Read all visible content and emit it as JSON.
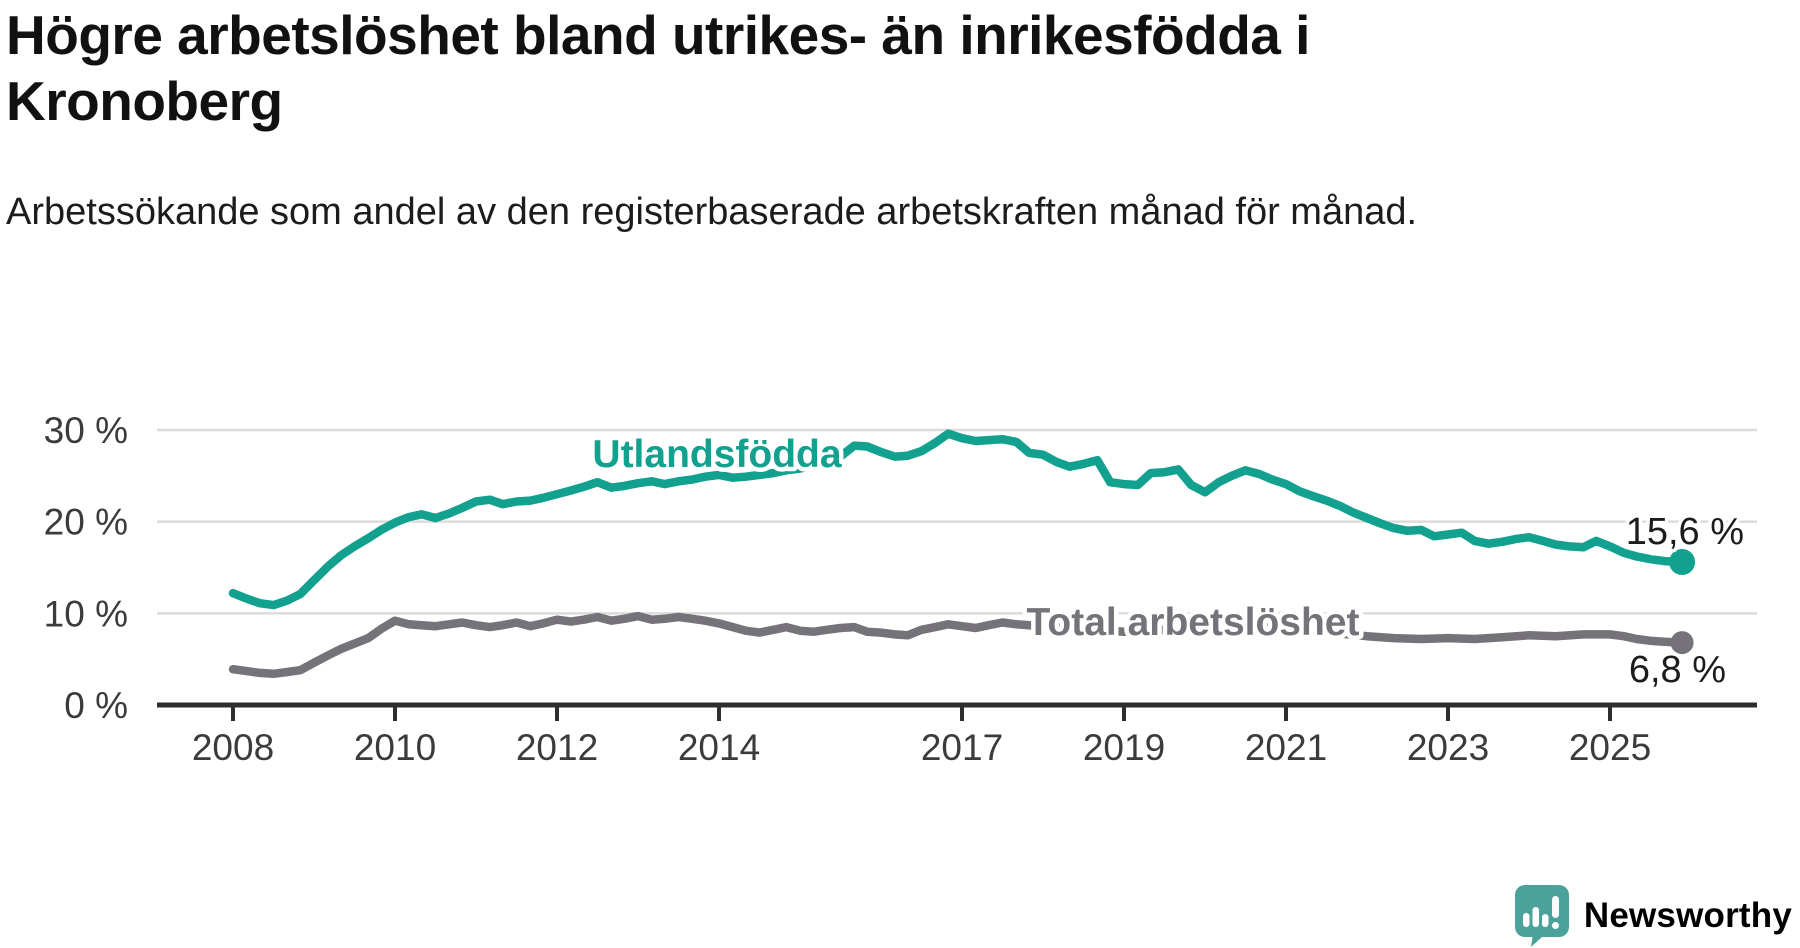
{
  "header": {
    "title": "Högre arbetslöshet bland utrikes- än inrikesfödda i Kronoberg",
    "subtitle": "Arbetssökande som andel av den registerbaserade arbetskraften månad för månad."
  },
  "chart_data": {
    "type": "line",
    "title": "Högre arbetslöshet bland utrikes- än inrikesfödda i Kronoberg",
    "subtitle": "Arbetssökande som andel av den registerbaserade arbetskraften månad för månad.",
    "xlabel": "",
    "ylabel": "",
    "grid": "horizontal",
    "legend_position": "inline-on-lines",
    "x_ticks": [
      2008,
      2010,
      2012,
      2014,
      2017,
      2019,
      2021,
      2023,
      2025
    ],
    "y_ticks": [
      {
        "value": 0,
        "label": "0 %"
      },
      {
        "value": 10,
        "label": "10 %"
      },
      {
        "value": 20,
        "label": "20 %"
      },
      {
        "value": 30,
        "label": "30 %"
      }
    ],
    "xlim": [
      2007.7,
      2026.6
    ],
    "ylim": [
      0,
      32.5
    ],
    "series": [
      {
        "name": "Utlandsfödda",
        "color": "#12a08f",
        "end_label": "15,6 %",
        "end_value": 15.6,
        "points": [
          [
            2008.0,
            12.2
          ],
          [
            2008.17,
            11.6
          ],
          [
            2008.33,
            11.1
          ],
          [
            2008.5,
            10.9
          ],
          [
            2008.67,
            11.4
          ],
          [
            2008.83,
            12.1
          ],
          [
            2009.0,
            13.6
          ],
          [
            2009.17,
            15.1
          ],
          [
            2009.33,
            16.3
          ],
          [
            2009.5,
            17.3
          ],
          [
            2009.67,
            18.2
          ],
          [
            2009.83,
            19.1
          ],
          [
            2010.0,
            19.9
          ],
          [
            2010.17,
            20.5
          ],
          [
            2010.33,
            20.8
          ],
          [
            2010.5,
            20.4
          ],
          [
            2010.67,
            20.9
          ],
          [
            2010.83,
            21.5
          ],
          [
            2011.0,
            22.2
          ],
          [
            2011.17,
            22.4
          ],
          [
            2011.33,
            21.9
          ],
          [
            2011.5,
            22.2
          ],
          [
            2011.67,
            22.3
          ],
          [
            2011.83,
            22.6
          ],
          [
            2012.0,
            23.0
          ],
          [
            2012.17,
            23.4
          ],
          [
            2012.33,
            23.8
          ],
          [
            2012.5,
            24.3
          ],
          [
            2012.67,
            23.7
          ],
          [
            2012.83,
            23.9
          ],
          [
            2013.0,
            24.2
          ],
          [
            2013.17,
            24.4
          ],
          [
            2013.33,
            24.1
          ],
          [
            2013.5,
            24.4
          ],
          [
            2013.67,
            24.6
          ],
          [
            2013.83,
            24.9
          ],
          [
            2014.0,
            25.1
          ],
          [
            2014.17,
            24.8
          ],
          [
            2014.33,
            24.9
          ],
          [
            2014.5,
            25.1
          ],
          [
            2014.67,
            25.3
          ],
          [
            2014.83,
            25.6
          ],
          [
            2015.0,
            25.8
          ],
          [
            2015.17,
            26.1
          ],
          [
            2015.33,
            26.4
          ],
          [
            2015.5,
            27.1
          ],
          [
            2015.67,
            28.3
          ],
          [
            2015.83,
            28.2
          ],
          [
            2016.0,
            27.6
          ],
          [
            2016.17,
            27.1
          ],
          [
            2016.33,
            27.2
          ],
          [
            2016.5,
            27.7
          ],
          [
            2016.67,
            28.6
          ],
          [
            2016.83,
            29.6
          ],
          [
            2017.0,
            29.1
          ],
          [
            2017.17,
            28.8
          ],
          [
            2017.33,
            28.9
          ],
          [
            2017.5,
            29.0
          ],
          [
            2017.67,
            28.7
          ],
          [
            2017.83,
            27.5
          ],
          [
            2018.0,
            27.3
          ],
          [
            2018.17,
            26.5
          ],
          [
            2018.33,
            26.0
          ],
          [
            2018.5,
            26.3
          ],
          [
            2018.67,
            26.7
          ],
          [
            2018.83,
            24.3
          ],
          [
            2019.0,
            24.1
          ],
          [
            2019.17,
            24.0
          ],
          [
            2019.33,
            25.3
          ],
          [
            2019.5,
            25.4
          ],
          [
            2019.67,
            25.7
          ],
          [
            2019.83,
            24.0
          ],
          [
            2020.0,
            23.2
          ],
          [
            2020.17,
            24.3
          ],
          [
            2020.33,
            25.0
          ],
          [
            2020.5,
            25.6
          ],
          [
            2020.67,
            25.2
          ],
          [
            2020.83,
            24.6
          ],
          [
            2021.0,
            24.1
          ],
          [
            2021.17,
            23.3
          ],
          [
            2021.33,
            22.8
          ],
          [
            2021.5,
            22.3
          ],
          [
            2021.67,
            21.7
          ],
          [
            2021.83,
            21.0
          ],
          [
            2022.0,
            20.4
          ],
          [
            2022.17,
            19.8
          ],
          [
            2022.33,
            19.3
          ],
          [
            2022.5,
            19.0
          ],
          [
            2022.67,
            19.1
          ],
          [
            2022.83,
            18.4
          ],
          [
            2023.0,
            18.6
          ],
          [
            2023.17,
            18.8
          ],
          [
            2023.33,
            17.9
          ],
          [
            2023.5,
            17.6
          ],
          [
            2023.67,
            17.8
          ],
          [
            2023.83,
            18.1
          ],
          [
            2024.0,
            18.3
          ],
          [
            2024.17,
            17.9
          ],
          [
            2024.33,
            17.5
          ],
          [
            2024.5,
            17.3
          ],
          [
            2024.67,
            17.2
          ],
          [
            2024.83,
            17.9
          ],
          [
            2025.0,
            17.3
          ],
          [
            2025.17,
            16.6
          ],
          [
            2025.33,
            16.2
          ],
          [
            2025.5,
            15.9
          ],
          [
            2025.67,
            15.7
          ],
          [
            2025.89,
            15.6
          ]
        ]
      },
      {
        "name": "Total arbetslöshet",
        "color": "#757379",
        "end_label": "6,8 %",
        "end_value": 6.8,
        "points": [
          [
            2008.0,
            3.9
          ],
          [
            2008.17,
            3.7
          ],
          [
            2008.33,
            3.5
          ],
          [
            2008.5,
            3.4
          ],
          [
            2008.67,
            3.6
          ],
          [
            2008.83,
            3.8
          ],
          [
            2009.0,
            4.6
          ],
          [
            2009.17,
            5.4
          ],
          [
            2009.33,
            6.1
          ],
          [
            2009.5,
            6.7
          ],
          [
            2009.67,
            7.3
          ],
          [
            2009.83,
            8.3
          ],
          [
            2010.0,
            9.2
          ],
          [
            2010.17,
            8.8
          ],
          [
            2010.33,
            8.7
          ],
          [
            2010.5,
            8.6
          ],
          [
            2010.67,
            8.8
          ],
          [
            2010.83,
            9.0
          ],
          [
            2011.0,
            8.7
          ],
          [
            2011.17,
            8.5
          ],
          [
            2011.33,
            8.7
          ],
          [
            2011.5,
            9.0
          ],
          [
            2011.67,
            8.6
          ],
          [
            2011.83,
            8.9
          ],
          [
            2012.0,
            9.3
          ],
          [
            2012.17,
            9.1
          ],
          [
            2012.33,
            9.3
          ],
          [
            2012.5,
            9.6
          ],
          [
            2012.67,
            9.2
          ],
          [
            2012.83,
            9.4
          ],
          [
            2013.0,
            9.7
          ],
          [
            2013.17,
            9.3
          ],
          [
            2013.33,
            9.4
          ],
          [
            2013.5,
            9.6
          ],
          [
            2013.67,
            9.4
          ],
          [
            2013.83,
            9.2
          ],
          [
            2014.0,
            8.9
          ],
          [
            2014.17,
            8.5
          ],
          [
            2014.33,
            8.1
          ],
          [
            2014.5,
            7.9
          ],
          [
            2014.67,
            8.2
          ],
          [
            2014.83,
            8.5
          ],
          [
            2015.0,
            8.1
          ],
          [
            2015.17,
            8.0
          ],
          [
            2015.33,
            8.2
          ],
          [
            2015.5,
            8.4
          ],
          [
            2015.67,
            8.5
          ],
          [
            2015.83,
            8.0
          ],
          [
            2016.0,
            7.9
          ],
          [
            2016.17,
            7.7
          ],
          [
            2016.33,
            7.6
          ],
          [
            2016.5,
            8.2
          ],
          [
            2016.67,
            8.5
          ],
          [
            2016.83,
            8.8
          ],
          [
            2017.0,
            8.6
          ],
          [
            2017.17,
            8.4
          ],
          [
            2017.33,
            8.7
          ],
          [
            2017.5,
            9.0
          ],
          [
            2017.67,
            8.8
          ],
          [
            2017.83,
            8.7
          ],
          [
            2018.0,
            8.6
          ],
          [
            2018.33,
            8.4
          ],
          [
            2018.67,
            8.2
          ],
          [
            2019.0,
            8.0
          ],
          [
            2019.33,
            8.1
          ],
          [
            2019.67,
            8.3
          ],
          [
            2020.0,
            8.1
          ],
          [
            2020.33,
            8.8
          ],
          [
            2020.5,
            9.0
          ],
          [
            2020.83,
            8.7
          ],
          [
            2021.0,
            8.5
          ],
          [
            2021.33,
            8.1
          ],
          [
            2021.67,
            7.8
          ],
          [
            2022.0,
            7.5
          ],
          [
            2022.33,
            7.3
          ],
          [
            2022.67,
            7.2
          ],
          [
            2023.0,
            7.3
          ],
          [
            2023.33,
            7.2
          ],
          [
            2023.67,
            7.4
          ],
          [
            2024.0,
            7.6
          ],
          [
            2024.33,
            7.5
          ],
          [
            2024.67,
            7.7
          ],
          [
            2025.0,
            7.7
          ],
          [
            2025.17,
            7.5
          ],
          [
            2025.33,
            7.2
          ],
          [
            2025.5,
            7.0
          ],
          [
            2025.67,
            6.9
          ],
          [
            2025.89,
            6.8
          ]
        ]
      }
    ],
    "colors": {
      "grid": "#dcdcdc",
      "axis": "#2e2e30",
      "tick_text": "#3b3b3d",
      "value_text": "#1c1c1c"
    }
  },
  "branding": {
    "name": "Newsworthy",
    "color": "#4ba29a"
  }
}
